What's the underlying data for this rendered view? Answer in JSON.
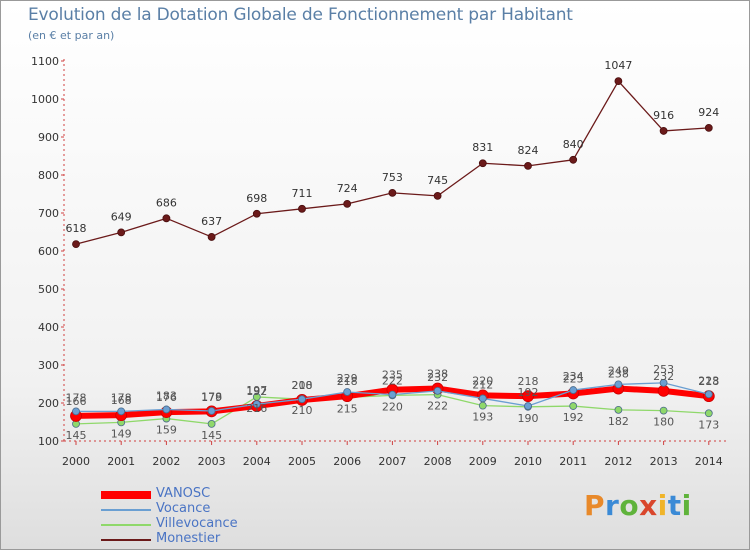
{
  "title": "Evolution de la Dotation Globale de Fonctionnement par Habitant",
  "subtitle": "(en € et par an)",
  "logo": "Proxiti",
  "logo_colors": [
    "#e8892a",
    "#3a8ad6",
    "#5fb33b",
    "#d9462c",
    "#f0b429",
    "#3a8ad6",
    "#5fb33b"
  ],
  "chart_data": {
    "type": "line",
    "x": [
      "2000",
      "2001",
      "2002",
      "2003",
      "2004",
      "2005",
      "2006",
      "2007",
      "2008",
      "2009",
      "2010",
      "2011",
      "2012",
      "2013",
      "2014"
    ],
    "ylim": [
      100,
      1100
    ],
    "yticks": [
      100,
      200,
      300,
      400,
      500,
      600,
      700,
      800,
      900,
      1000,
      1100
    ],
    "grid": false,
    "legend_position": "bottom-left",
    "series": [
      {
        "name": "VANOSC",
        "color": "#ff0000",
        "values": [
          166,
          168,
          176,
          178,
          192,
          208,
          218,
          235,
          238,
          220,
          218,
          225,
          238,
          232,
          218
        ]
      },
      {
        "name": "Vocance",
        "color": "#6a9fd2",
        "values": [
          178,
          178,
          183,
          179,
          197,
          210,
          229,
          222,
          232,
          212,
          192,
          234,
          249,
          253,
          223
        ]
      },
      {
        "name": "Villevocance",
        "color": "#8fd86a",
        "values": [
          145,
          149,
          159,
          145,
          216,
          210,
          215,
          220,
          222,
          193,
          190,
          192,
          182,
          180,
          173
        ]
      },
      {
        "name": "Monestier",
        "color": "#6b1a1a",
        "values": [
          618,
          649,
          686,
          637,
          698,
          711,
          724,
          753,
          745,
          831,
          824,
          840,
          1047,
          916,
          924
        ]
      }
    ],
    "data_labels": {
      "Monestier": [
        "618",
        "649",
        "686",
        "637",
        "698",
        "711",
        "724",
        "753",
        "745",
        "831",
        "824",
        "840",
        "1047",
        "916",
        "924"
      ],
      "VANOSC": [
        "166",
        "168",
        "176",
        "178",
        "192",
        "208",
        "218",
        "235",
        "238",
        "220",
        "218",
        "225",
        "238",
        "232",
        "218"
      ],
      "Vocance": [
        "178",
        "178",
        "183",
        "179",
        "197",
        "210",
        "229",
        "222",
        "232",
        "212",
        "192",
        "234",
        "249",
        "253",
        "223"
      ],
      "Villevocance": [
        "145",
        "149",
        "159",
        "145",
        "216",
        "210",
        "215",
        "220",
        "222",
        "193",
        "190",
        "192",
        "182",
        "180",
        "173"
      ]
    }
  }
}
